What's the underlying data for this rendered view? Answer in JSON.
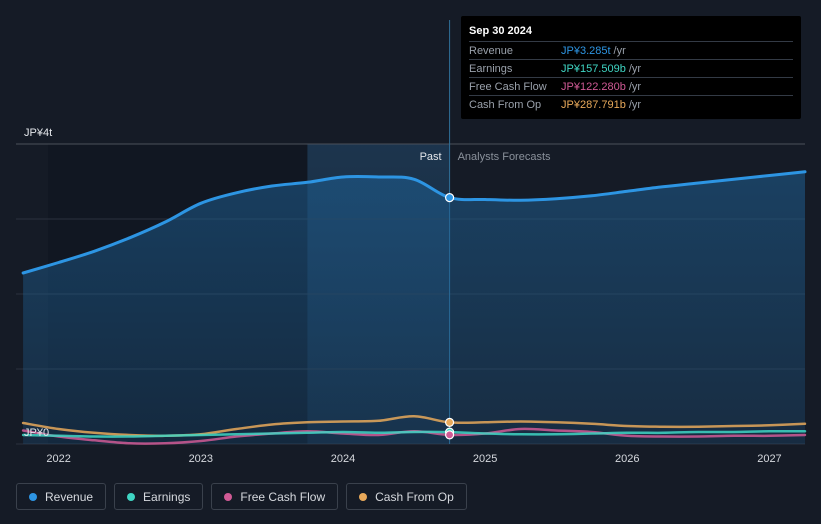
{
  "chart_data": {
    "type": "area",
    "title": "",
    "ylabel_top": "JP¥4t",
    "ylabel_bottom": "JP¥0",
    "ylim": [
      0,
      4
    ],
    "xlim": [
      2021.7,
      2027.25
    ],
    "x_ticks": [
      "2022",
      "2023",
      "2024",
      "2025",
      "2026",
      "2027"
    ],
    "x_tick_values": [
      2022,
      2023,
      2024,
      2025,
      2026,
      2027
    ],
    "past_label": "Past",
    "forecast_label": "Analysts Forecasts",
    "divider_x": 2024.75,
    "highlight_start_x": 2023.75,
    "series": [
      {
        "name": "Revenue",
        "color": "#2d95e3",
        "x": [
          2021.75,
          2022.0,
          2022.25,
          2022.5,
          2022.75,
          2023.0,
          2023.25,
          2023.5,
          2023.75,
          2024.0,
          2024.25,
          2024.5,
          2024.75,
          2025.0,
          2025.25,
          2025.5,
          2025.75,
          2026.0,
          2026.25,
          2026.5,
          2026.75,
          2027.0,
          2027.25
        ],
        "values": [
          2.28,
          2.42,
          2.57,
          2.75,
          2.96,
          3.21,
          3.35,
          3.44,
          3.49,
          3.56,
          3.56,
          3.53,
          3.285,
          3.26,
          3.25,
          3.27,
          3.31,
          3.37,
          3.43,
          3.48,
          3.53,
          3.58,
          3.63
        ]
      },
      {
        "name": "Earnings",
        "color": "#3fd6c4",
        "x": [
          2021.75,
          2022.0,
          2022.25,
          2022.5,
          2022.75,
          2023.0,
          2023.25,
          2023.5,
          2023.75,
          2024.0,
          2024.25,
          2024.5,
          2024.75,
          2025.0,
          2025.25,
          2025.5,
          2025.75,
          2026.0,
          2026.25,
          2026.5,
          2026.75,
          2027.0,
          2027.25
        ],
        "values": [
          0.12,
          0.11,
          0.1,
          0.1,
          0.11,
          0.12,
          0.13,
          0.14,
          0.15,
          0.16,
          0.15,
          0.16,
          0.158,
          0.14,
          0.13,
          0.13,
          0.14,
          0.15,
          0.15,
          0.16,
          0.16,
          0.17,
          0.17
        ]
      },
      {
        "name": "Free Cash Flow",
        "color": "#d05a95",
        "x": [
          2021.75,
          2022.0,
          2022.25,
          2022.5,
          2022.75,
          2023.0,
          2023.25,
          2023.5,
          2023.75,
          2024.0,
          2024.25,
          2024.5,
          2024.75,
          2025.0,
          2025.25,
          2025.5,
          2025.75,
          2026.0,
          2026.25,
          2026.5,
          2026.75,
          2027.0,
          2027.25
        ],
        "values": [
          0.18,
          0.1,
          0.05,
          0.01,
          0.01,
          0.04,
          0.1,
          0.14,
          0.17,
          0.14,
          0.12,
          0.17,
          0.122,
          0.14,
          0.2,
          0.18,
          0.16,
          0.11,
          0.1,
          0.1,
          0.11,
          0.11,
          0.12
        ]
      },
      {
        "name": "Cash From Op",
        "color": "#e8a95a",
        "x": [
          2021.75,
          2022.0,
          2022.25,
          2022.5,
          2022.75,
          2023.0,
          2023.25,
          2023.5,
          2023.75,
          2024.0,
          2024.25,
          2024.5,
          2024.75,
          2025.0,
          2025.25,
          2025.5,
          2025.75,
          2026.0,
          2026.25,
          2026.5,
          2026.75,
          2027.0,
          2027.25
        ],
        "values": [
          0.28,
          0.2,
          0.15,
          0.12,
          0.11,
          0.13,
          0.2,
          0.26,
          0.29,
          0.3,
          0.31,
          0.37,
          0.288,
          0.29,
          0.3,
          0.29,
          0.27,
          0.24,
          0.23,
          0.23,
          0.24,
          0.25,
          0.27
        ]
      }
    ]
  },
  "tooltip": {
    "date": "Sep 30 2024",
    "rows": [
      {
        "label": "Revenue",
        "value": "JP¥3.285t",
        "unit": "/yr",
        "color": "#2d95e3"
      },
      {
        "label": "Earnings",
        "value": "JP¥157.509b",
        "unit": "/yr",
        "color": "#3fd6c4"
      },
      {
        "label": "Free Cash Flow",
        "value": "JP¥122.280b",
        "unit": "/yr",
        "color": "#d05a95"
      },
      {
        "label": "Cash From Op",
        "value": "JP¥287.791b",
        "unit": "/yr",
        "color": "#e8a95a"
      }
    ]
  },
  "legend": [
    {
      "label": "Revenue",
      "color": "#2d95e3"
    },
    {
      "label": "Earnings",
      "color": "#3fd6c4"
    },
    {
      "label": "Free Cash Flow",
      "color": "#d05a95"
    },
    {
      "label": "Cash From Op",
      "color": "#e8a95a"
    }
  ]
}
